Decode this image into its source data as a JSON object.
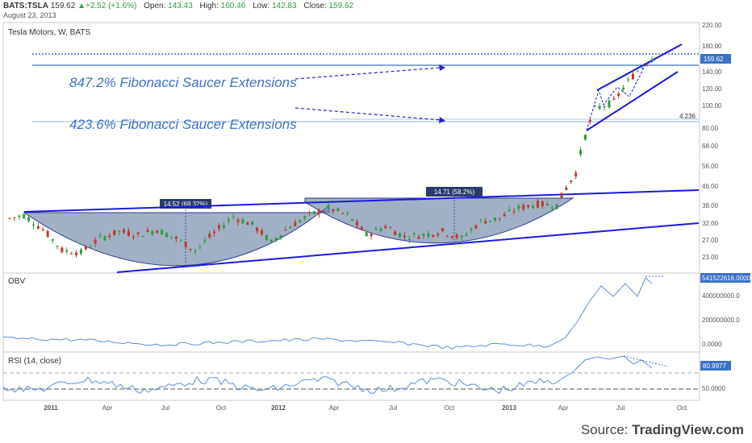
{
  "header": {
    "symbol": "BATS:TSLA",
    "last": "159.62",
    "change": "+2.52 (+1.6%)",
    "open_label": "Open:",
    "open": "143.43",
    "high_label": "High:",
    "high": "160.46",
    "low_label": "Low:",
    "low": "142.83",
    "close_label": "Close:",
    "close": "159.62",
    "date": "August 23, 2013"
  },
  "chart_title": "Tesla Motors, W, BATS",
  "annotations": {
    "fib_847": "847.2% Fibonacci Saucer Extensions",
    "fib_423": "423.6% Fibonacci Saucer Extensions",
    "base1_label": "14.52 (69.32%)",
    "base2_label": "14.71 (58.2%)",
    "fib_level_low": "4.236",
    "price_badge": "159.62",
    "obv_badge": "541522616.0000",
    "rsi_badge": "80.9977"
  },
  "source": {
    "prefix": "Source: ",
    "name": "TradingView.com"
  },
  "colors": {
    "up": "#2e9e3f",
    "down": "#c0392b",
    "trend": "#1a1adf",
    "fib": "#3a72c6",
    "saucer": "#6f86a6",
    "panel_line": "#5b8fd6"
  },
  "chart_data": [
    {
      "type": "candlestick",
      "title": "Tesla Motors, W, BATS",
      "y_scale": "log",
      "y_ticks": [
        "220.00",
        "180.00",
        "160.00",
        "140.00",
        "120.00",
        "100.00",
        "80.00",
        "68.00",
        "56.00",
        "46.00",
        "38.00",
        "32.00",
        "27.00",
        "23.00"
      ],
      "x_ticks": [
        "2011",
        "Apr",
        "Jul",
        "Oct",
        "2012",
        "Apr",
        "Jul",
        "Oct",
        "2013",
        "Apr",
        "Jul",
        "Oct"
      ],
      "x": [
        "2010-11",
        "2010-12",
        "2011-01",
        "2011-02",
        "2011-03",
        "2011-04",
        "2011-05",
        "2011-06",
        "2011-07",
        "2011-08",
        "2011-09",
        "2011-10",
        "2011-11",
        "2011-12",
        "2012-01",
        "2012-02",
        "2012-03",
        "2012-04",
        "2012-05",
        "2012-06",
        "2012-07",
        "2012-08",
        "2012-09",
        "2012-10",
        "2012-11",
        "2012-12",
        "2013-01",
        "2013-02",
        "2013-03",
        "2013-04",
        "2013-05",
        "2013-06",
        "2013-07",
        "2013-08"
      ],
      "close": [
        34.5,
        30.0,
        24.5,
        24.0,
        27.5,
        29.5,
        28.5,
        30.0,
        27.5,
        24.5,
        29.0,
        34.0,
        31.5,
        26.5,
        31.0,
        34.5,
        37.0,
        34.5,
        28.5,
        31.0,
        28.0,
        28.5,
        29.5,
        27.5,
        32.5,
        33.5,
        37.0,
        38.5,
        38.0,
        52.0,
        97.0,
        104.0,
        134.0,
        159.62
      ],
      "series": [
        {
          "name": "Resistance trendline",
          "points": [
            [
              "2010-10",
              35.5
            ],
            [
              "2013-11",
              44.0
            ]
          ]
        },
        {
          "name": "Support trendline",
          "points": [
            [
              "2010-12",
              20.5
            ],
            [
              "2013-11",
              31.5
            ]
          ]
        },
        {
          "name": "Rising channel upper",
          "points": [
            [
              "2013-05",
              112.0
            ],
            [
              "2013-10",
              180.0
            ]
          ]
        },
        {
          "name": "Rising channel lower",
          "points": [
            [
              "2013-04",
              80.0
            ],
            [
              "2013-10",
              139.0
            ]
          ]
        }
      ],
      "levels": {
        "fib_847": 142.0,
        "fib_423": 85.0,
        "top_dotted": 165.0
      }
    },
    {
      "type": "line",
      "title": "OBV",
      "y_ticks": [
        "400000000.0",
        "200000000.0",
        "0.0000"
      ],
      "last": 541522616.0
    },
    {
      "type": "line",
      "title": "RSI (14, close)",
      "y_ticks": [
        "50.0000"
      ],
      "last": 80.9977
    }
  ]
}
